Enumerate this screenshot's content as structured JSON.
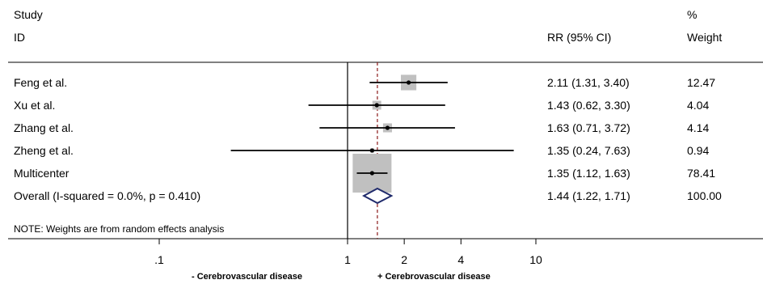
{
  "chart_data": {
    "type": "forest",
    "headers": {
      "study_line1": "Study",
      "study_line2": "ID",
      "rr": "RR (95% CI)",
      "weight_line1": "%",
      "weight_line2": "Weight"
    },
    "rows": [
      {
        "label": "Feng et al.",
        "rr": 2.11,
        "lo": 1.31,
        "hi": 3.4,
        "ci_text": "2.11 (1.31, 3.40)",
        "weight": 12.47,
        "weight_text": "12.47"
      },
      {
        "label": "Xu et al.",
        "rr": 1.43,
        "lo": 0.62,
        "hi": 3.3,
        "ci_text": "1.43 (0.62, 3.30)",
        "weight": 4.04,
        "weight_text": "4.04"
      },
      {
        "label": "Zhang et al.",
        "rr": 1.63,
        "lo": 0.71,
        "hi": 3.72,
        "ci_text": "1.63 (0.71, 3.72)",
        "weight": 4.14,
        "weight_text": "4.14"
      },
      {
        "label": "Zheng et al.",
        "rr": 1.35,
        "lo": 0.24,
        "hi": 7.63,
        "ci_text": "1.35 (0.24, 7.63)",
        "weight": 0.94,
        "weight_text": "0.94"
      },
      {
        "label": "Multicenter",
        "rr": 1.35,
        "lo": 1.12,
        "hi": 1.63,
        "ci_text": "1.35 (1.12, 1.63)",
        "weight": 78.41,
        "weight_text": "78.41"
      }
    ],
    "overall": {
      "label": "Overall  (I-squared = 0.0%, p = 0.410)",
      "rr": 1.44,
      "lo": 1.22,
      "hi": 1.71,
      "ci_text": "1.44 (1.22, 1.71)",
      "weight": 100.0,
      "weight_text": "100.00"
    },
    "note": "NOTE: Weights are from random effects analysis",
    "x_scale": "log",
    "xlim": [
      0.1,
      10
    ],
    "x_ticks": [
      {
        "value": 0.1,
        "label": ".1"
      },
      {
        "value": 1,
        "label": "1"
      },
      {
        "value": 2,
        "label": "2"
      },
      {
        "value": 4,
        "label": "4"
      },
      {
        "value": 10,
        "label": "10"
      }
    ],
    "null_line": 1,
    "footer_left": "- Cerebrovascular disease",
    "footer_right": "+ Cerebrovascular disease",
    "colors": {
      "line": "#000000",
      "box": "#c0c0c0",
      "diamond": "#1f2a6b",
      "overall_line": "#8b1a1a"
    }
  }
}
